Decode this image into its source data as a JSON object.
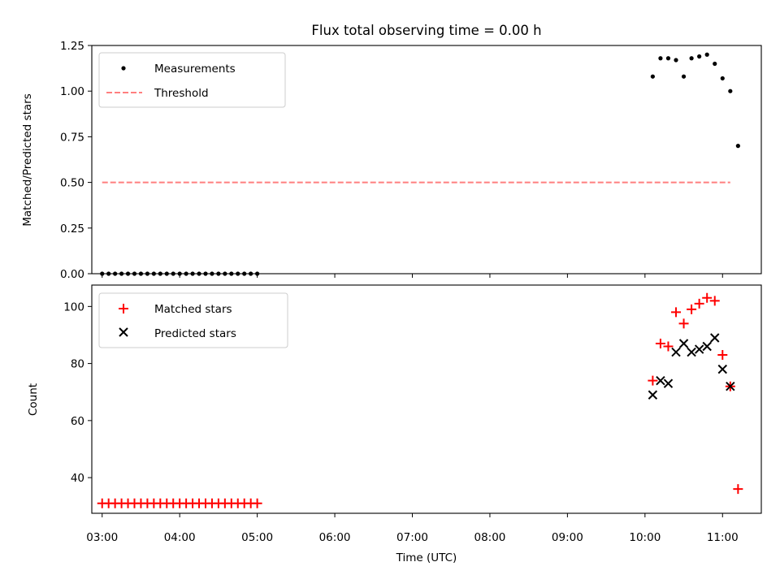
{
  "title": "Flux total observing time = 0.00 h",
  "xlabel": "Time (UTC)",
  "xtick_labels": [
    "03:00",
    "04:00",
    "05:00",
    "06:00",
    "07:00",
    "08:00",
    "09:00",
    "10:00",
    "11:00"
  ],
  "chart_data": [
    {
      "type": "scatter",
      "ylabel": "Matched/Predicted stars",
      "xlim": [
        "02:52",
        "11:30"
      ],
      "ylim": [
        0,
        1.25
      ],
      "ytick_labels": [
        "0.00",
        "0.25",
        "0.50",
        "0.75",
        "1.00",
        "1.25"
      ],
      "legend_position": "upper left",
      "grid": false,
      "series": [
        {
          "name": "Measurements",
          "color": "#000000",
          "marker": "dot",
          "x": [
            "03:00",
            "03:05",
            "03:10",
            "03:15",
            "03:20",
            "03:25",
            "03:30",
            "03:35",
            "03:40",
            "03:45",
            "03:50",
            "03:55",
            "04:00",
            "04:05",
            "04:10",
            "04:15",
            "04:20",
            "04:25",
            "04:30",
            "04:35",
            "04:40",
            "04:45",
            "04:50",
            "04:55",
            "05:00",
            "10:06",
            "10:12",
            "10:18",
            "10:24",
            "10:30",
            "10:36",
            "10:42",
            "10:48",
            "10:54",
            "11:00",
            "11:06",
            "11:12"
          ],
          "y": [
            0,
            0,
            0,
            0,
            0,
            0,
            0,
            0,
            0,
            0,
            0,
            0,
            0,
            0,
            0,
            0,
            0,
            0,
            0,
            0,
            0,
            0,
            0,
            0,
            0,
            1.08,
            1.18,
            1.18,
            1.17,
            1.08,
            1.18,
            1.19,
            1.2,
            1.15,
            1.07,
            1.0,
            0.7
          ]
        },
        {
          "name": "Threshold",
          "color": "#ff7f7f",
          "style": "dashed",
          "x": [
            "03:00",
            "11:06"
          ],
          "y": [
            0.5,
            0.5
          ]
        }
      ]
    },
    {
      "type": "scatter",
      "ylabel": "Count",
      "xlim": [
        "02:52",
        "11:30"
      ],
      "ylim": [
        27.5,
        107.5
      ],
      "ytick_labels": [
        "40",
        "60",
        "80",
        "100"
      ],
      "legend_position": "upper left",
      "grid": false,
      "series": [
        {
          "name": "Matched stars",
          "color": "#ff0000",
          "marker": "plus",
          "x": [
            "03:00",
            "03:05",
            "03:10",
            "03:15",
            "03:20",
            "03:25",
            "03:30",
            "03:35",
            "03:40",
            "03:45",
            "03:50",
            "03:55",
            "04:00",
            "04:05",
            "04:10",
            "04:15",
            "04:20",
            "04:25",
            "04:30",
            "04:35",
            "04:40",
            "04:45",
            "04:50",
            "04:55",
            "05:00",
            "10:06",
            "10:12",
            "10:18",
            "10:24",
            "10:30",
            "10:36",
            "10:42",
            "10:48",
            "10:54",
            "11:00",
            "11:06",
            "11:12"
          ],
          "y": [
            31,
            31,
            31,
            31,
            31,
            31,
            31,
            31,
            31,
            31,
            31,
            31,
            31,
            31,
            31,
            31,
            31,
            31,
            31,
            31,
            31,
            31,
            31,
            31,
            31,
            74,
            87,
            86,
            98,
            94,
            99,
            101,
            103,
            102,
            83,
            72,
            36
          ]
        },
        {
          "name": "Predicted stars",
          "color": "#000000",
          "marker": "x",
          "x": [
            "10:06",
            "10:12",
            "10:18",
            "10:24",
            "10:30",
            "10:36",
            "10:42",
            "10:48",
            "10:54",
            "11:00",
            "11:06"
          ],
          "y": [
            69,
            74,
            73,
            84,
            87,
            84,
            85,
            86,
            89,
            78,
            72
          ]
        }
      ]
    }
  ]
}
